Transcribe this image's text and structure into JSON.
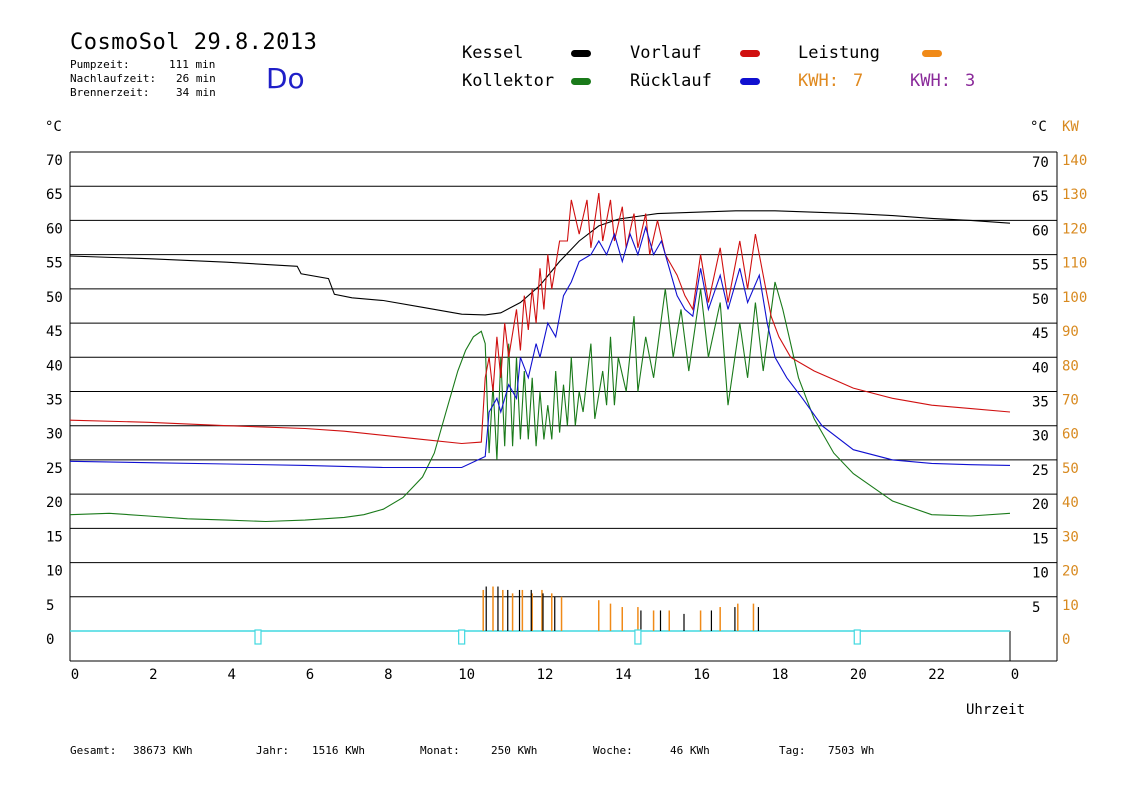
{
  "header": {
    "title": "CosmoSol 29.8.2013",
    "day": "Do",
    "stats": [
      {
        "label": "Pumpzeit:",
        "value": "111 min"
      },
      {
        "label": "Nachlaufzeit:",
        "value": "26 min"
      },
      {
        "label": "Brennerzeit:",
        "value": "34 min"
      }
    ]
  },
  "legend": {
    "kessel": "Kessel",
    "kollektor": "Kollektor",
    "vorlauf": "Vorlauf",
    "ruecklauf": "Rücklauf",
    "leistung": "Leistung",
    "kwh1_label": "KWH:",
    "kwh1_value": "7",
    "kwh2_label": "KWH:",
    "kwh2_value": "3"
  },
  "colors": {
    "kessel": "#000000",
    "kollektor": "#1a7a1a",
    "vorlauf": "#d01010",
    "ruecklauf": "#1010d0",
    "leistung": "#f08a18",
    "kwh2": "#8a2a9a",
    "pump": "#40d8e0"
  },
  "footer": {
    "gesamt_label": "Gesamt:",
    "gesamt_value": "38673 KWh",
    "jahr_label": "Jahr:",
    "jahr_value": "1516 KWh",
    "monat_label": "Monat:",
    "monat_value": "250 KWh",
    "woche_label": "Woche:",
    "woche_value": "46 KWh",
    "tag_label": "Tag:",
    "tag_value": "7503 Wh"
  },
  "chart_data": {
    "type": "line",
    "title": "",
    "xlabel": "Uhrzeit",
    "ylabel_left": "°C",
    "ylabel_right": "°C",
    "ylabel_right2": "KW",
    "xlim": [
      0,
      24
    ],
    "ylim": [
      0,
      70
    ],
    "y2lim": [
      0,
      140
    ],
    "x_ticks": [
      "0",
      "2",
      "4",
      "6",
      "8",
      "10",
      "12",
      "14",
      "16",
      "18",
      "20",
      "22",
      "0"
    ],
    "y_ticks": [
      0,
      5,
      10,
      15,
      20,
      25,
      30,
      35,
      40,
      45,
      50,
      55,
      60,
      65,
      70
    ],
    "y_ticks_right": [
      "",
      "5",
      "10",
      "15",
      "20",
      "25",
      "30",
      "35",
      "40",
      "45",
      "50",
      "55",
      "60",
      "65",
      "70"
    ],
    "y2_ticks": [
      0,
      10,
      20,
      30,
      40,
      50,
      60,
      70,
      80,
      90,
      100,
      110,
      120,
      130,
      140
    ],
    "grid": true,
    "series": [
      {
        "name": "Kessel",
        "color": "#000000",
        "points": [
          [
            0,
            54.8
          ],
          [
            2,
            54.4
          ],
          [
            4,
            53.9
          ],
          [
            5.8,
            53.3
          ],
          [
            5.9,
            52.2
          ],
          [
            6.6,
            51.5
          ],
          [
            6.75,
            49.2
          ],
          [
            7.2,
            48.7
          ],
          [
            8,
            48.3
          ],
          [
            9,
            47.3
          ],
          [
            10,
            46.3
          ],
          [
            10.6,
            46.2
          ],
          [
            11,
            46.5
          ],
          [
            11.5,
            48
          ],
          [
            12,
            50.5
          ],
          [
            12.5,
            54
          ],
          [
            13,
            57
          ],
          [
            13.5,
            59.2
          ],
          [
            14,
            60.2
          ],
          [
            15,
            61
          ],
          [
            16,
            61.2
          ],
          [
            17,
            61.4
          ],
          [
            18,
            61.4
          ],
          [
            19,
            61.2
          ],
          [
            20,
            61
          ],
          [
            21,
            60.7
          ],
          [
            22,
            60.3
          ],
          [
            23,
            60
          ],
          [
            24,
            59.6
          ]
        ]
      },
      {
        "name": "Kollektor",
        "color": "#1a7a1a",
        "points": [
          [
            0,
            17
          ],
          [
            1,
            17.2
          ],
          [
            2,
            16.8
          ],
          [
            3,
            16.4
          ],
          [
            4,
            16.2
          ],
          [
            5,
            16
          ],
          [
            6,
            16.2
          ],
          [
            7,
            16.6
          ],
          [
            7.5,
            17
          ],
          [
            8,
            17.8
          ],
          [
            8.5,
            19.5
          ],
          [
            9,
            22.5
          ],
          [
            9.3,
            26
          ],
          [
            9.6,
            32
          ],
          [
            9.9,
            38
          ],
          [
            10.1,
            41
          ],
          [
            10.3,
            43
          ],
          [
            10.5,
            43.8
          ],
          [
            10.6,
            42
          ],
          [
            10.7,
            26
          ],
          [
            10.8,
            36
          ],
          [
            10.9,
            25
          ],
          [
            11,
            40
          ],
          [
            11.1,
            27
          ],
          [
            11.2,
            42
          ],
          [
            11.3,
            27
          ],
          [
            11.4,
            40
          ],
          [
            11.5,
            28
          ],
          [
            11.6,
            38
          ],
          [
            11.7,
            28
          ],
          [
            11.8,
            37
          ],
          [
            11.9,
            27
          ],
          [
            12,
            35
          ],
          [
            12.1,
            28
          ],
          [
            12.2,
            33
          ],
          [
            12.3,
            28
          ],
          [
            12.4,
            38
          ],
          [
            12.5,
            29
          ],
          [
            12.6,
            36
          ],
          [
            12.7,
            30
          ],
          [
            12.8,
            40
          ],
          [
            12.9,
            30
          ],
          [
            13,
            35
          ],
          [
            13.1,
            32
          ],
          [
            13.3,
            42
          ],
          [
            13.4,
            31
          ],
          [
            13.6,
            38
          ],
          [
            13.7,
            33
          ],
          [
            13.8,
            43
          ],
          [
            13.9,
            33
          ],
          [
            14,
            40
          ],
          [
            14.2,
            35
          ],
          [
            14.4,
            46
          ],
          [
            14.5,
            35
          ],
          [
            14.7,
            43
          ],
          [
            14.9,
            37
          ],
          [
            15.2,
            50
          ],
          [
            15.4,
            40
          ],
          [
            15.6,
            47
          ],
          [
            15.8,
            38
          ],
          [
            16.1,
            50
          ],
          [
            16.3,
            40
          ],
          [
            16.6,
            48
          ],
          [
            16.8,
            33
          ],
          [
            17.1,
            45
          ],
          [
            17.3,
            37
          ],
          [
            17.5,
            48
          ],
          [
            17.7,
            38
          ],
          [
            18,
            51
          ],
          [
            18.2,
            47
          ],
          [
            18.6,
            37
          ],
          [
            19,
            31
          ],
          [
            19.5,
            26
          ],
          [
            20,
            23
          ],
          [
            21,
            19
          ],
          [
            22,
            17
          ],
          [
            23,
            16.8
          ],
          [
            24,
            17.2
          ]
        ]
      },
      {
        "name": "Vorlauf",
        "color": "#d01010",
        "points": [
          [
            0,
            30.8
          ],
          [
            2,
            30.5
          ],
          [
            4,
            30
          ],
          [
            6,
            29.6
          ],
          [
            7,
            29.2
          ],
          [
            8,
            28.6
          ],
          [
            9,
            28
          ],
          [
            10,
            27.4
          ],
          [
            10.5,
            27.6
          ],
          [
            10.6,
            37
          ],
          [
            10.7,
            40
          ],
          [
            10.8,
            35
          ],
          [
            10.9,
            43
          ],
          [
            11,
            37
          ],
          [
            11.1,
            45
          ],
          [
            11.2,
            40
          ],
          [
            11.4,
            47
          ],
          [
            11.5,
            41
          ],
          [
            11.6,
            49
          ],
          [
            11.7,
            44
          ],
          [
            11.8,
            50
          ],
          [
            11.9,
            45
          ],
          [
            12,
            53
          ],
          [
            12.1,
            47
          ],
          [
            12.2,
            55
          ],
          [
            12.3,
            50
          ],
          [
            12.5,
            57
          ],
          [
            12.7,
            57
          ],
          [
            12.8,
            63
          ],
          [
            13,
            58
          ],
          [
            13.2,
            63
          ],
          [
            13.3,
            56
          ],
          [
            13.5,
            64
          ],
          [
            13.6,
            57
          ],
          [
            13.8,
            63
          ],
          [
            13.9,
            57
          ],
          [
            14.1,
            62
          ],
          [
            14.2,
            56
          ],
          [
            14.4,
            61
          ],
          [
            14.5,
            56
          ],
          [
            14.7,
            61
          ],
          [
            14.8,
            55
          ],
          [
            15,
            60
          ],
          [
            15.2,
            55
          ],
          [
            15.5,
            52
          ],
          [
            15.7,
            49
          ],
          [
            15.9,
            47
          ],
          [
            16.1,
            55
          ],
          [
            16.3,
            48
          ],
          [
            16.6,
            56
          ],
          [
            16.8,
            48
          ],
          [
            17.1,
            57
          ],
          [
            17.3,
            50
          ],
          [
            17.5,
            58
          ],
          [
            17.7,
            52
          ],
          [
            17.9,
            46
          ],
          [
            18.1,
            43
          ],
          [
            18.4,
            40
          ],
          [
            19,
            38
          ],
          [
            20,
            35.5
          ],
          [
            21,
            34
          ],
          [
            22,
            33
          ],
          [
            23,
            32.5
          ],
          [
            24,
            32
          ]
        ]
      },
      {
        "name": "Rücklauf",
        "color": "#1010d0",
        "points": [
          [
            0,
            24.8
          ],
          [
            2,
            24.6
          ],
          [
            4,
            24.4
          ],
          [
            6,
            24.2
          ],
          [
            8,
            23.9
          ],
          [
            10,
            23.9
          ],
          [
            10.6,
            25.5
          ],
          [
            10.7,
            32
          ],
          [
            10.9,
            34
          ],
          [
            11,
            32
          ],
          [
            11.2,
            36
          ],
          [
            11.4,
            34
          ],
          [
            11.5,
            40
          ],
          [
            11.7,
            37
          ],
          [
            11.9,
            42
          ],
          [
            12,
            40
          ],
          [
            12.2,
            45
          ],
          [
            12.4,
            43
          ],
          [
            12.6,
            49
          ],
          [
            12.8,
            51
          ],
          [
            13,
            54
          ],
          [
            13.3,
            55
          ],
          [
            13.5,
            57
          ],
          [
            13.7,
            55
          ],
          [
            13.9,
            58
          ],
          [
            14.1,
            54
          ],
          [
            14.3,
            58
          ],
          [
            14.5,
            55
          ],
          [
            14.7,
            59
          ],
          [
            14.9,
            55
          ],
          [
            15.1,
            57
          ],
          [
            15.3,
            53
          ],
          [
            15.5,
            49
          ],
          [
            15.7,
            47
          ],
          [
            15.9,
            46
          ],
          [
            16.1,
            53
          ],
          [
            16.3,
            47
          ],
          [
            16.6,
            52
          ],
          [
            16.8,
            47
          ],
          [
            17.1,
            53
          ],
          [
            17.3,
            48
          ],
          [
            17.6,
            52
          ],
          [
            17.8,
            45
          ],
          [
            18,
            40
          ],
          [
            18.3,
            37
          ],
          [
            18.7,
            34
          ],
          [
            19.2,
            30
          ],
          [
            20,
            26.5
          ],
          [
            21,
            25
          ],
          [
            22,
            24.5
          ],
          [
            23,
            24.3
          ],
          [
            24,
            24.2
          ]
        ]
      }
    ],
    "leistung_spikes_kw": [
      [
        10.55,
        12
      ],
      [
        10.8,
        13
      ],
      [
        11.05,
        12
      ],
      [
        11.3,
        11
      ],
      [
        11.55,
        12
      ],
      [
        11.8,
        11
      ],
      [
        12.05,
        12
      ],
      [
        12.3,
        11
      ],
      [
        12.55,
        10
      ],
      [
        13.5,
        9
      ],
      [
        13.8,
        8
      ],
      [
        14.1,
        7
      ],
      [
        14.5,
        7
      ],
      [
        14.9,
        6
      ],
      [
        15.3,
        6
      ],
      [
        16.1,
        6
      ],
      [
        16.6,
        7
      ],
      [
        17.05,
        8
      ],
      [
        17.45,
        8
      ]
    ],
    "kessel_spikes_kw": [
      [
        10.55,
        13
      ],
      [
        10.85,
        13
      ],
      [
        11.1,
        12
      ],
      [
        11.4,
        12
      ],
      [
        11.7,
        12
      ],
      [
        12.0,
        11
      ],
      [
        12.3,
        10
      ],
      [
        14.5,
        6
      ],
      [
        15.0,
        6
      ],
      [
        15.6,
        5
      ],
      [
        16.3,
        6
      ],
      [
        16.9,
        7
      ],
      [
        17.5,
        7
      ]
    ],
    "pump_markers_x": [
      4.8,
      10.0,
      14.5,
      20.1
    ]
  }
}
